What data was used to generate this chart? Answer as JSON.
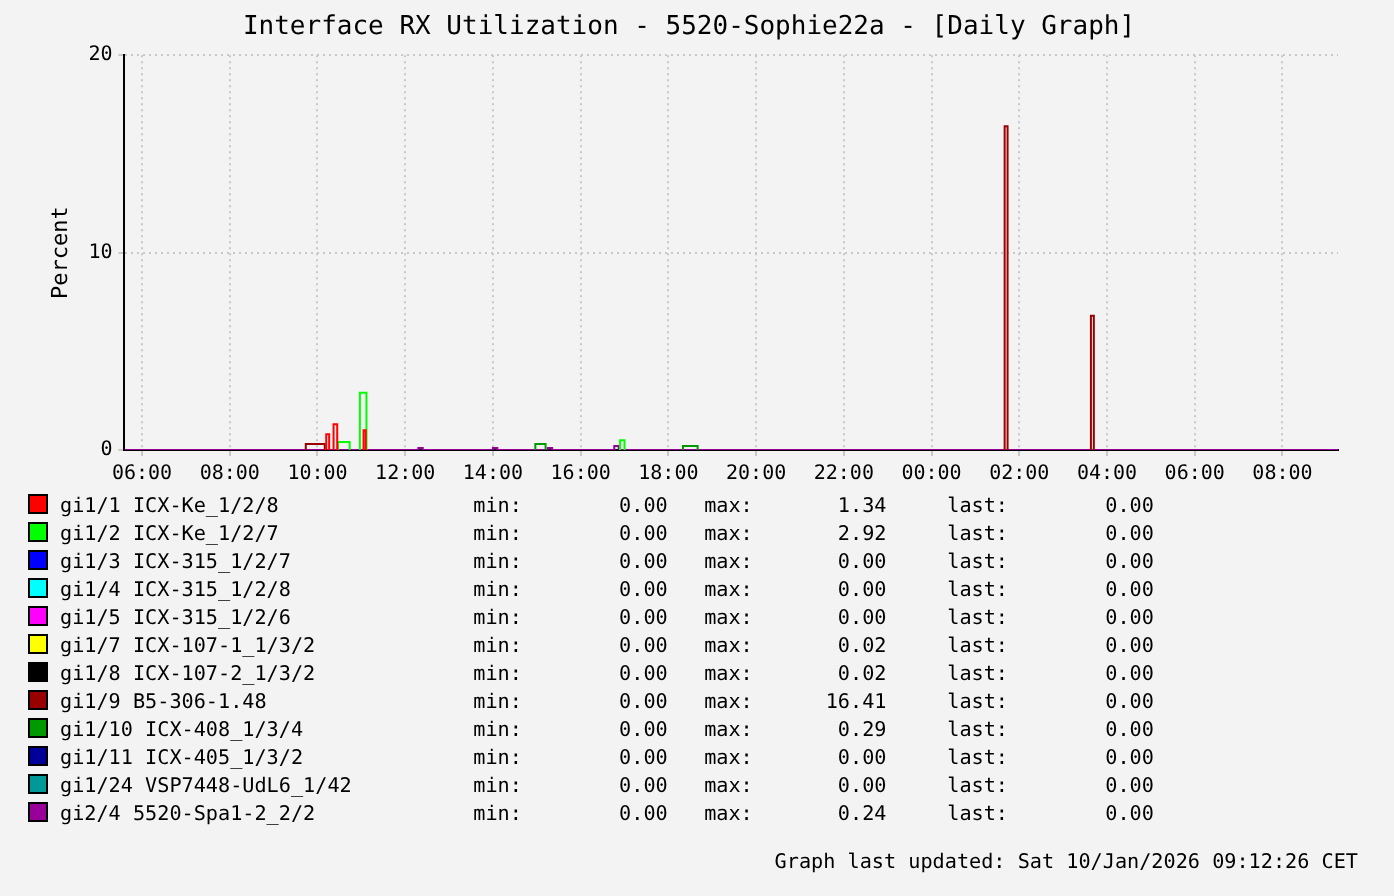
{
  "chart_data": {
    "type": "line",
    "title": "Interface RX Utilization - 5520-Sophie22a - [Daily Graph]",
    "ylabel": "Percent",
    "xlim": [
      "2026-01-09T05:36",
      "2026-01-10T09:16"
    ],
    "xticks": [
      {
        "value": "2026-01-09T06:00",
        "label": "06:00"
      },
      {
        "value": "2026-01-09T08:00",
        "label": "08:00"
      },
      {
        "value": "2026-01-09T10:00",
        "label": "10:00"
      },
      {
        "value": "2026-01-09T12:00",
        "label": "12:00"
      },
      {
        "value": "2026-01-09T14:00",
        "label": "14:00"
      },
      {
        "value": "2026-01-09T16:00",
        "label": "16:00"
      },
      {
        "value": "2026-01-09T18:00",
        "label": "18:00"
      },
      {
        "value": "2026-01-09T20:00",
        "label": "20:00"
      },
      {
        "value": "2026-01-09T22:00",
        "label": "22:00"
      },
      {
        "value": "2026-01-10T00:00",
        "label": "00:00"
      },
      {
        "value": "2026-01-10T02:00",
        "label": "02:00"
      },
      {
        "value": "2026-01-10T04:00",
        "label": "04:00"
      },
      {
        "value": "2026-01-10T06:00",
        "label": "06:00"
      },
      {
        "value": "2026-01-10T08:00",
        "label": "08:00"
      }
    ],
    "ylim": [
      0,
      20
    ],
    "yticks": [
      0,
      10,
      20
    ],
    "grid": true,
    "legend": "bottom",
    "series": [
      {
        "name": "gi1/1 ICX-Ke_1/2/8                min:        0.00   max:       1.34     last:        0.00",
        "color": "#ff0000",
        "x": [
          "2026-01-09T10:12",
          "2026-01-09T10:12",
          "2026-01-09T10:16",
          "2026-01-09T10:16",
          "2026-01-09T10:19",
          "2026-01-09T10:22",
          "2026-01-09T10:22",
          "2026-01-09T10:27",
          "2026-01-09T10:27",
          "2026-01-09T10:45",
          "2026-01-09T11:03",
          "2026-01-09T11:03",
          "2026-01-09T11:06",
          "2026-01-09T11:06"
        ],
        "values": [
          0,
          0.8,
          0.8,
          0,
          null,
          0,
          1.3,
          1.3,
          0,
          null,
          0,
          1.0,
          1.0,
          0
        ]
      },
      {
        "name": "gi1/2 ICX-Ke_1/2/7                min:        0.00   max:       2.92     last:        0.00",
        "color": "#00ff00",
        "x": [
          "2026-01-09T10:28",
          "2026-01-09T10:28",
          "2026-01-09T10:44",
          "2026-01-09T10:44",
          "2026-01-09T10:50",
          "2026-01-09T10:58",
          "2026-01-09T10:58",
          "2026-01-09T11:07",
          "2026-01-09T11:07",
          "2026-01-09T14:00",
          "2026-01-09T16:54",
          "2026-01-09T16:54",
          "2026-01-09T17:00",
          "2026-01-09T17:00"
        ],
        "values": [
          0,
          0.4,
          0.4,
          0,
          null,
          0,
          2.9,
          2.9,
          0,
          null,
          0,
          0.5,
          0.5,
          0
        ]
      },
      {
        "name": "gi1/3 ICX-315_1/2/7               min:        0.00   max:       0.00     last:        0.00",
        "color": "#0000ff"
      },
      {
        "name": "gi1/4 ICX-315_1/2/8               min:        0.00   max:       0.00     last:        0.00",
        "color": "#00ffff"
      },
      {
        "name": "gi1/5 ICX-315_1/2/6               min:        0.00   max:       0.00     last:        0.00",
        "color": "#ff00ff"
      },
      {
        "name": "gi1/7 ICX-107-1_1/3/2             min:        0.00   max:       0.02     last:        0.00",
        "color": "#ffff00"
      },
      {
        "name": "gi1/8 ICX-107-2_1/3/2             min:        0.00   max:       0.02     last:        0.00",
        "color": "#000000"
      },
      {
        "name": "gi1/9 B5-306-1.48                 min:        0.00   max:      16.41     last:        0.00",
        "color": "#990000",
        "x": [
          "2026-01-09T09:44",
          "2026-01-09T09:44",
          "2026-01-09T10:10",
          "2026-01-09T10:10",
          "2026-01-09T18:00",
          "2026-01-10T01:40",
          "2026-01-10T01:40",
          "2026-01-10T01:44",
          "2026-01-10T01:44",
          "2026-01-10T02:30",
          "2026-01-10T03:38",
          "2026-01-10T03:38",
          "2026-01-10T03:42",
          "2026-01-10T03:42"
        ],
        "values": [
          0,
          0.3,
          0.3,
          0,
          null,
          0,
          16.4,
          16.4,
          0,
          null,
          0,
          6.8,
          6.8,
          0
        ]
      },
      {
        "name": "gi1/10 ICX-408_1/3/4              min:        0.00   max:       0.29     last:        0.00",
        "color": "#009900",
        "x": [
          "2026-01-09T14:58",
          "2026-01-09T14:58",
          "2026-01-09T15:12",
          "2026-01-09T15:12",
          "2026-01-09T16:00",
          "2026-01-09T18:20",
          "2026-01-09T18:20",
          "2026-01-09T18:40",
          "2026-01-09T18:40"
        ],
        "values": [
          0,
          0.3,
          0.3,
          0,
          null,
          0,
          0.2,
          0.2,
          0
        ]
      },
      {
        "name": "gi1/11 ICX-405_1/3/2              min:        0.00   max:       0.00     last:        0.00",
        "color": "#000099"
      },
      {
        "name": "gi1/24 VSP7448-UdL6_1/42          min:        0.00   max:       0.00     last:        0.00",
        "color": "#009999"
      },
      {
        "name": "gi2/4 5520-Spa1-2_2/2             min:        0.00   max:       0.24     last:        0.00",
        "color": "#990099",
        "x": [
          "2026-01-09T05:36",
          "2026-01-09T12:18",
          "2026-01-09T12:18",
          "2026-01-09T12:24",
          "2026-01-09T12:24",
          "2026-01-09T14:00",
          "2026-01-09T14:00",
          "2026-01-09T14:06",
          "2026-01-09T14:06",
          "2026-01-09T15:15",
          "2026-01-09T15:15",
          "2026-01-09T15:21",
          "2026-01-09T15:21",
          "2026-01-09T16:46",
          "2026-01-09T16:46",
          "2026-01-09T16:52",
          "2026-01-09T16:52",
          "2026-01-10T09:16"
        ],
        "values": [
          0,
          0,
          0.1,
          0.1,
          0,
          0,
          0.1,
          0.1,
          0,
          0,
          0.1,
          0.1,
          0,
          0,
          0.2,
          0.2,
          0,
          0
        ]
      }
    ],
    "annotations": [
      "Graph last updated: Sat 10/Jan/2026 09:12:26 CET"
    ]
  }
}
